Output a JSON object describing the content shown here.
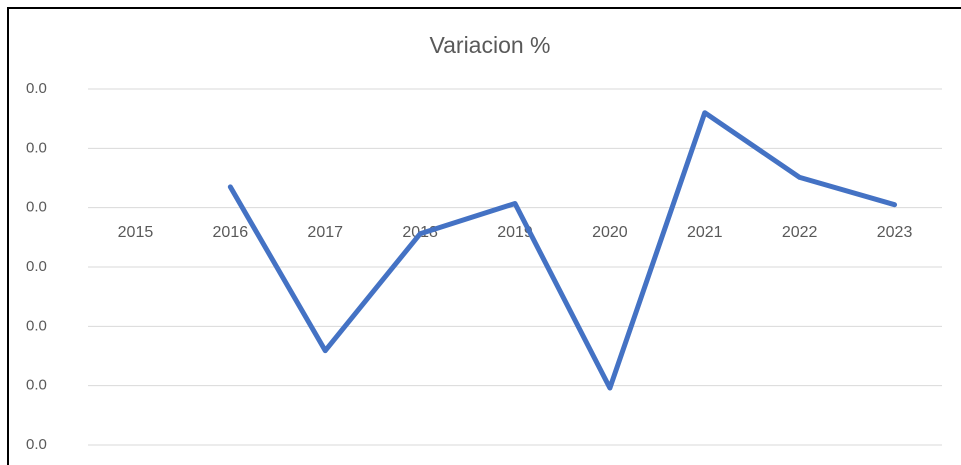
{
  "chart_data": {
    "type": "line",
    "title": "Variacion %",
    "categories": [
      "2015",
      "2016",
      "2017",
      "2018",
      "2019",
      "2020",
      "2021",
      "2022",
      "2023"
    ],
    "series": [
      {
        "name": "Variacion %",
        "color": "#4472c4",
        "values": [
          null,
          0.0035,
          -0.0241,
          -0.0044,
          0.0007,
          -0.0304,
          0.016,
          0.0051,
          0.0005
        ]
      }
    ],
    "ylim": [
      -0.04,
      0.02
    ],
    "yticks": [
      {
        "value": 0.02,
        "label": "0.0"
      },
      {
        "value": 0.01,
        "label": "0.0"
      },
      {
        "value": 0,
        "label": "0.0"
      },
      {
        "value": -0.01,
        "label": "0.0"
      },
      {
        "value": -0.02,
        "label": "0.0"
      },
      {
        "value": -0.03,
        "label": "0.0"
      },
      {
        "value": -0.04,
        "label": "0.0"
      }
    ],
    "grid": true
  }
}
